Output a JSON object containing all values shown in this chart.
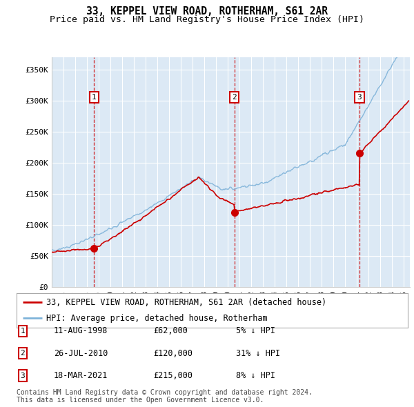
{
  "title": "33, KEPPEL VIEW ROAD, ROTHERHAM, S61 2AR",
  "subtitle": "Price paid vs. HM Land Registry's House Price Index (HPI)",
  "ylabel_ticks": [
    "£0",
    "£50K",
    "£100K",
    "£150K",
    "£200K",
    "£250K",
    "£300K",
    "£350K"
  ],
  "ylim": [
    0,
    370000
  ],
  "xlim_start": 1995.0,
  "xlim_end": 2025.5,
  "background_color": "#dce9f5",
  "line_color_red": "#cc0000",
  "line_color_blue": "#7fb3d9",
  "grid_color": "#ffffff",
  "sale_dates": [
    1998.61,
    2010.56,
    2021.21
  ],
  "sale_prices": [
    62000,
    120000,
    215000
  ],
  "sale_labels": [
    "1",
    "2",
    "3"
  ],
  "vline_dates": [
    1998.61,
    2010.56,
    2021.21
  ],
  "legend_red": "33, KEPPEL VIEW ROAD, ROTHERHAM, S61 2AR (detached house)",
  "legend_blue": "HPI: Average price, detached house, Rotherham",
  "table_rows": [
    [
      "1",
      "11-AUG-1998",
      "£62,000",
      "5% ↓ HPI"
    ],
    [
      "2",
      "26-JUL-2010",
      "£120,000",
      "31% ↓ HPI"
    ],
    [
      "3",
      "18-MAR-2021",
      "£215,000",
      "8% ↓ HPI"
    ]
  ],
  "footer": "Contains HM Land Registry data © Crown copyright and database right 2024.\nThis data is licensed under the Open Government Licence v3.0.",
  "title_fontsize": 10.5,
  "subtitle_fontsize": 9.5,
  "tick_fontsize": 8,
  "legend_fontsize": 8.5,
  "table_fontsize": 8.5,
  "footer_fontsize": 7
}
